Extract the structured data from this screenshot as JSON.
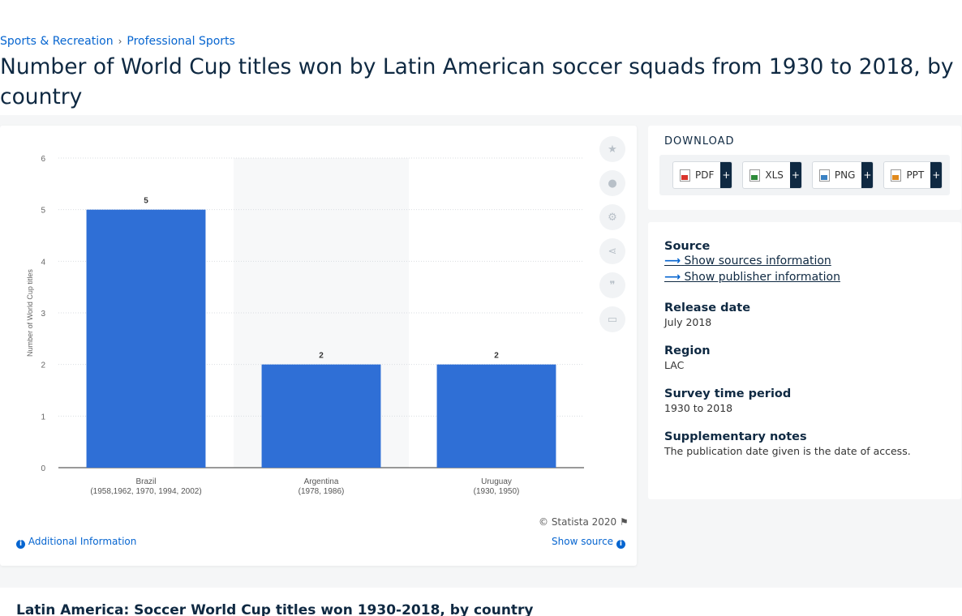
{
  "breadcrumb": {
    "items": [
      "Sports & Recreation",
      "Professional Sports"
    ]
  },
  "page_title": "Number of World Cup titles won by Latin American soccer squads from 1930 to 2018, by country",
  "chart_card": {
    "copyright": "© Statista 2020",
    "additional_info": "Additional Information",
    "show_source": "Show source",
    "tool_icons": [
      "star-icon",
      "bell-icon",
      "gear-icon",
      "share-icon",
      "quote-icon",
      "print-icon"
    ]
  },
  "download": {
    "title": "DOWNLOAD",
    "buttons": [
      {
        "label": "PDF",
        "icon": "pdf-file-icon"
      },
      {
        "label": "XLS",
        "icon": "xls-file-icon"
      },
      {
        "label": "PNG",
        "icon": "png-file-icon"
      },
      {
        "label": "PPT",
        "icon": "ppt-file-icon"
      }
    ],
    "plus": "+"
  },
  "info": {
    "source_heading": "Source",
    "show_sources": "Show sources information",
    "show_publisher": "Show publisher information",
    "release_heading": "Release date",
    "release_value": "July 2018",
    "region_heading": "Region",
    "region_value": "LAC",
    "survey_heading": "Survey time period",
    "survey_value": "1930 to 2018",
    "notes_heading": "Supplementary notes",
    "notes_value": "The publication date given is the date of access."
  },
  "bottom": {
    "heading": "Latin America: Soccer World Cup titles won 1930-2018, by country"
  },
  "chart_data": {
    "type": "bar",
    "categories": [
      "Brazil",
      "Argentina",
      "Uruguay"
    ],
    "category_sublabels": [
      "(1958,1962, 1970, 1994, 2002)",
      "(1978, 1986)",
      "(1930, 1950)"
    ],
    "values": [
      5,
      2,
      2
    ],
    "ylabel": "Number of World Cup titles",
    "ylim": [
      0,
      6
    ],
    "yticks": [
      0,
      1,
      2,
      3,
      4,
      5,
      6
    ],
    "bar_color": "#2f6fd6",
    "grid": true,
    "highlighted_category": "Argentina"
  }
}
